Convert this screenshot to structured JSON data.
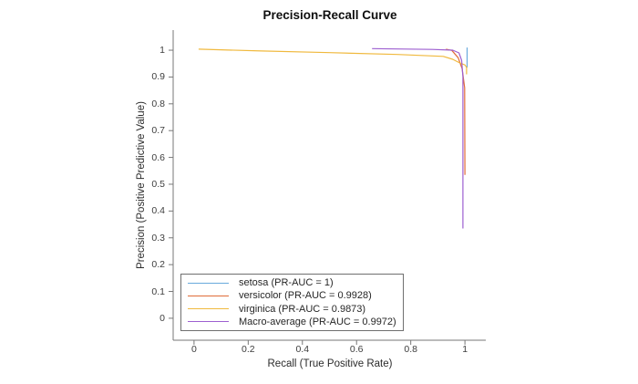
{
  "chart_data": {
    "type": "line",
    "title": "Precision-Recall Curve",
    "xlabel": "Recall (True Positive Rate)",
    "ylabel": "Precision (Positive Predictive Value)",
    "xlim": [
      -0.077,
      1.077
    ],
    "ylim": [
      -0.082,
      1.075
    ],
    "x_ticks": [
      0,
      0.2,
      0.4,
      0.6,
      0.8,
      1
    ],
    "x_tick_labels": [
      "0",
      "0.2",
      "0.4",
      "0.6",
      "0.8",
      "1"
    ],
    "y_ticks": [
      0,
      0.1,
      0.2,
      0.3,
      0.4,
      0.5,
      0.6,
      0.7,
      0.8,
      0.9,
      1
    ],
    "y_tick_labels": [
      "0",
      "0.1",
      "0.2",
      "0.3",
      "0.4",
      "0.5",
      "0.6",
      "0.7",
      "0.8",
      "0.9",
      "1"
    ],
    "grid": false,
    "axis_color": "#777777",
    "legend": {
      "position": "southwest"
    },
    "series": [
      {
        "class": "setosa",
        "name": "setosa (PR-AUC = 1)",
        "pr_auc": 1,
        "color": "#69aadd",
        "points": [
          [
            1.008,
            1.01
          ],
          [
            1.008,
            0.935
          ]
        ]
      },
      {
        "class": "versicolor",
        "name": "versicolor (PR-AUC = 0.9928)",
        "pr_auc": 0.9928,
        "color": "#e06b38",
        "points": [
          [
            0.93,
            1.004
          ],
          [
            0.952,
            0.999
          ],
          [
            0.975,
            0.972
          ],
          [
            0.99,
            0.93
          ],
          [
            0.999,
            0.86
          ],
          [
            1.0,
            0.535
          ]
        ]
      },
      {
        "class": "virginica",
        "name": "virginica (PR-AUC = 0.9873)",
        "pr_auc": 0.9873,
        "color": "#f0b93e",
        "points": [
          [
            0.017,
            1.004
          ],
          [
            0.25,
            0.997
          ],
          [
            0.5,
            0.991
          ],
          [
            0.75,
            0.984
          ],
          [
            0.92,
            0.977
          ],
          [
            0.955,
            0.966
          ],
          [
            0.98,
            0.953
          ],
          [
            1.0,
            0.945
          ],
          [
            1.006,
            0.936
          ],
          [
            1.006,
            0.91
          ]
        ]
      },
      {
        "class": "Macro-average",
        "name": "Macro-average (PR-AUC = 0.9972)",
        "pr_auc": 0.9972,
        "color": "#9d5fd0",
        "points": [
          [
            0.657,
            1.006
          ],
          [
            0.88,
            1.003
          ],
          [
            0.955,
            1.0
          ],
          [
            0.978,
            0.99
          ],
          [
            0.988,
            0.962
          ],
          [
            0.9925,
            0.9
          ],
          [
            0.9925,
            0.335
          ]
        ]
      }
    ]
  }
}
